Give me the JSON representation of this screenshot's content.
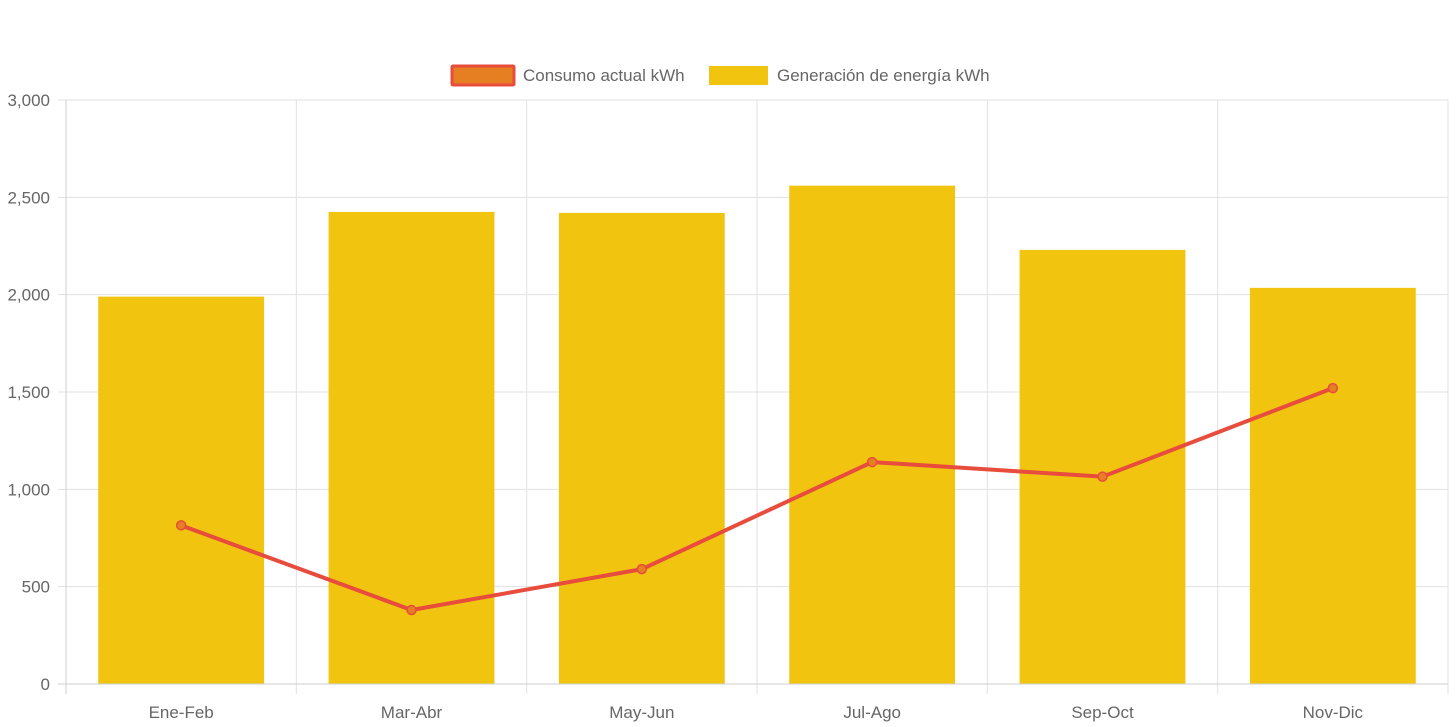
{
  "chart_data": {
    "type": "bar",
    "categories": [
      "Ene-Feb",
      "Mar-Abr",
      "May-Jun",
      "Jul-Ago",
      "Sep-Oct",
      "Nov-Dic"
    ],
    "series": [
      {
        "name": "Consumo actual kWh",
        "type": "line",
        "values": [
          815,
          380,
          590,
          1140,
          1065,
          1520
        ],
        "color": "#e74c3c",
        "fill_color": "#e67e22"
      },
      {
        "name": "Generación de energía kWh",
        "type": "bar",
        "values": [
          1990,
          2425,
          2420,
          2560,
          2230,
          2035
        ],
        "color": "#f1c40f"
      }
    ],
    "ylim": [
      0,
      3000
    ],
    "yticks": [
      {
        "value": 0,
        "label": "0"
      },
      {
        "value": 500,
        "label": "500"
      },
      {
        "value": 1000,
        "label": "1,000"
      },
      {
        "value": 1500,
        "label": "1,500"
      },
      {
        "value": 2000,
        "label": "2,000"
      },
      {
        "value": 2500,
        "label": "2,500"
      },
      {
        "value": 3000,
        "label": "3,000"
      }
    ],
    "title": "",
    "xlabel": "",
    "ylabel": "",
    "grid": true,
    "legend_position": "top"
  }
}
